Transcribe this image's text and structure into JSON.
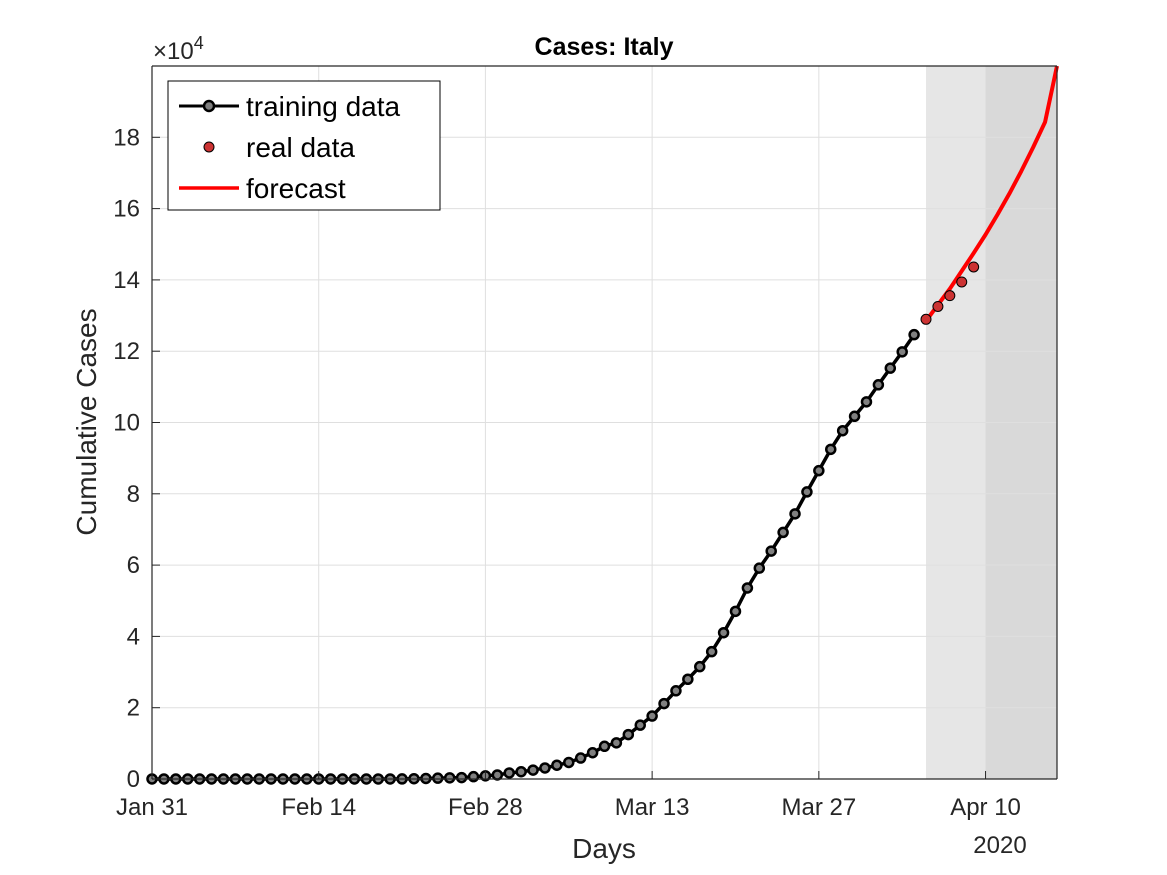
{
  "chart_data": {
    "type": "line",
    "title": "Cases: Italy",
    "xlabel": "Days",
    "ylabel": "Cumulative Cases",
    "y_exponent_label": "×10",
    "y_exponent_power": "4",
    "year_label": "2020",
    "x_range": [
      "2020-01-31",
      "2020-04-16"
    ],
    "ylim": [
      0,
      200000
    ],
    "grid": true,
    "legend_position": "top-left",
    "x_ticks": [
      {
        "date": "2020-01-31",
        "label": "Jan 31"
      },
      {
        "date": "2020-02-14",
        "label": "Feb 14"
      },
      {
        "date": "2020-02-28",
        "label": "Feb 28"
      },
      {
        "date": "2020-03-13",
        "label": "Mar 13"
      },
      {
        "date": "2020-03-27",
        "label": "Mar 27"
      },
      {
        "date": "2020-04-10",
        "label": "Apr 10"
      }
    ],
    "y_ticks": [
      {
        "value": 0,
        "label": "0"
      },
      {
        "value": 20000,
        "label": "2"
      },
      {
        "value": 40000,
        "label": "4"
      },
      {
        "value": 60000,
        "label": "6"
      },
      {
        "value": 80000,
        "label": "8"
      },
      {
        "value": 100000,
        "label": "10"
      },
      {
        "value": 120000,
        "label": "12"
      },
      {
        "value": 140000,
        "label": "14"
      },
      {
        "value": 160000,
        "label": "16"
      },
      {
        "value": 180000,
        "label": "18"
      }
    ],
    "shaded_regions": [
      {
        "start": "2020-04-05",
        "end": "2020-04-10",
        "color": "#e6e6e6"
      },
      {
        "start": "2020-04-10",
        "end": "2020-04-16",
        "color": "#d9d9d9"
      }
    ],
    "series": [
      {
        "name": "training data",
        "style": "line-marker",
        "color": "#000000",
        "marker_color": "#808080",
        "start_date": "2020-01-31",
        "values": [
          2,
          2,
          2,
          2,
          2,
          2,
          3,
          3,
          3,
          3,
          3,
          3,
          3,
          3,
          3,
          3,
          3,
          3,
          3,
          3,
          3,
          20,
          79,
          150,
          229,
          322,
          400,
          650,
          888,
          1128,
          1694,
          2036,
          2502,
          3089,
          3858,
          4636,
          5883,
          7375,
          9172,
          10149,
          12462,
          15113,
          17660,
          21157,
          24747,
          27980,
          31506,
          35713,
          41035,
          47021,
          53578,
          59138,
          63927,
          69176,
          74386,
          80539,
          86498,
          92472,
          97689,
          101739,
          105792,
          110574,
          115242,
          119827,
          124632
        ]
      },
      {
        "name": "real data",
        "style": "marker",
        "color": "#cc3333",
        "start_date": "2020-04-05",
        "values": [
          128948,
          132547,
          135586,
          139422,
          143626
        ]
      },
      {
        "name": "forecast",
        "style": "line",
        "color": "#ff0000",
        "dates": [
          "2020-04-05",
          "2020-04-06",
          "2020-04-07",
          "2020-04-08",
          "2020-04-09",
          "2020-04-10",
          "2020-04-11",
          "2020-04-12",
          "2020-04-13",
          "2020-04-14",
          "2020-04-15",
          "2020-04-16"
        ],
        "values": [
          128500,
          133000,
          137500,
          142500,
          147500,
          152700,
          158300,
          164200,
          170500,
          177200,
          184300,
          200000
        ]
      }
    ],
    "legend_sample_colors": {
      "frame": "#000000",
      "marker_edge": "#000000"
    }
  }
}
